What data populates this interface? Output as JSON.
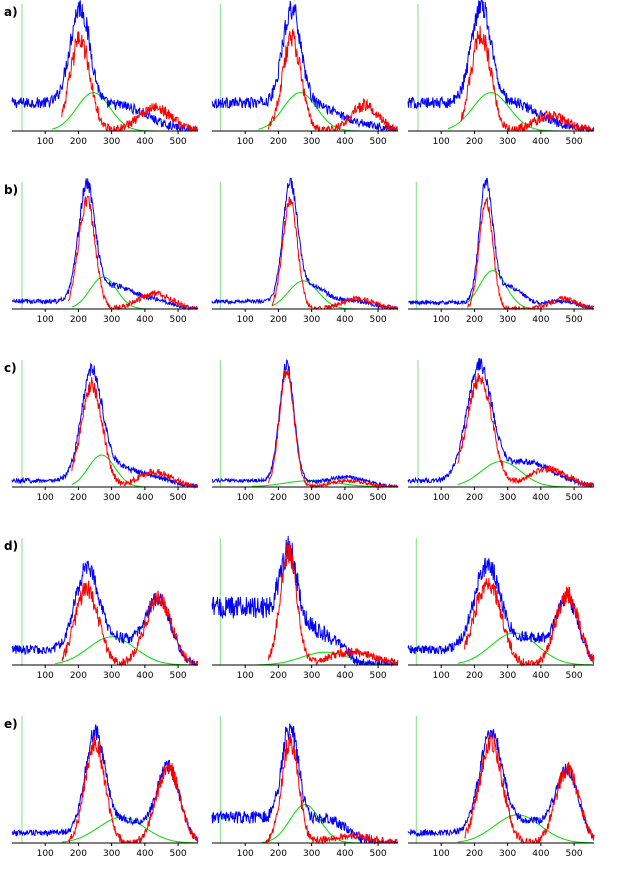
{
  "chart_data": {
    "type": "line",
    "row_labels": [
      "a)",
      "b)",
      "c)",
      "d)",
      "e)"
    ],
    "x_ticks": [
      100,
      200,
      300,
      400,
      500
    ],
    "xlim": [
      0,
      560
    ],
    "grid": false,
    "legend": "none",
    "colors": {
      "blue": "#0000ff",
      "red": "#ff0000",
      "green": "#00dd00",
      "marker": "#80e080"
    },
    "series_note": "Each panel: blue = noisy measured histogram, red = noisy fitted component, green = smooth reference curve; pale green vertical marker near x=20-40.",
    "panels": [
      {
        "row": 0,
        "col": 0,
        "marker_x": 30,
        "blue": {
          "baseline": 0.22,
          "peaks": [
            {
              "c": 205,
              "w": 30,
              "h": 0.78
            },
            {
              "c": 330,
              "w": 60,
              "h": 0.1
            },
            {
              "c": 430,
              "w": 60,
              "h": 0.05
            }
          ],
          "end": 560,
          "noise": 0.07
        },
        "red": {
          "peaks": [
            {
              "c": 205,
              "w": 30,
              "h": 0.72
            },
            {
              "c": 430,
              "w": 50,
              "h": 0.18
            }
          ],
          "start": 150,
          "end": 560,
          "noise": 0.08
        },
        "green": {
          "peaks": [
            {
              "c": 245,
              "w": 50,
              "h": 0.3
            }
          ],
          "start": 120,
          "end": 560
        }
      },
      {
        "row": 0,
        "col": 1,
        "marker_x": 25,
        "blue": {
          "baseline": 0.22,
          "peaks": [
            {
              "c": 240,
              "w": 28,
              "h": 0.78
            },
            {
              "c": 330,
              "w": 60,
              "h": 0.1
            },
            {
              "c": 460,
              "w": 50,
              "h": 0.05
            }
          ],
          "end": 560,
          "noise": 0.07
        },
        "red": {
          "peaks": [
            {
              "c": 240,
              "w": 28,
              "h": 0.72
            },
            {
              "c": 460,
              "w": 40,
              "h": 0.2
            }
          ],
          "start": 170,
          "end": 560,
          "noise": 0.08
        },
        "green": {
          "peaks": [
            {
              "c": 265,
              "w": 50,
              "h": 0.3
            }
          ],
          "start": 140,
          "end": 560
        }
      },
      {
        "row": 0,
        "col": 2,
        "marker_x": 30,
        "blue": {
          "baseline": 0.22,
          "peaks": [
            {
              "c": 220,
              "w": 30,
              "h": 0.8
            },
            {
              "c": 320,
              "w": 60,
              "h": 0.12
            },
            {
              "c": 440,
              "w": 60,
              "h": 0.05
            }
          ],
          "end": 560,
          "noise": 0.07
        },
        "red": {
          "peaks": [
            {
              "c": 220,
              "w": 30,
              "h": 0.75
            },
            {
              "c": 430,
              "w": 50,
              "h": 0.12
            }
          ],
          "start": 160,
          "end": 560,
          "noise": 0.08
        },
        "green": {
          "peaks": [
            {
              "c": 250,
              "w": 55,
              "h": 0.3
            }
          ],
          "start": 120,
          "end": 560
        }
      },
      {
        "row": 1,
        "col": 0,
        "marker_x": 30,
        "blue": {
          "baseline": 0.06,
          "peaks": [
            {
              "c": 225,
              "w": 25,
              "h": 0.9
            },
            {
              "c": 310,
              "w": 50,
              "h": 0.15
            },
            {
              "c": 430,
              "w": 50,
              "h": 0.07
            }
          ],
          "end": 560,
          "noise": 0.04
        },
        "red": {
          "peaks": [
            {
              "c": 225,
              "w": 25,
              "h": 0.85
            },
            {
              "c": 430,
              "w": 50,
              "h": 0.12
            }
          ],
          "start": 170,
          "end": 560,
          "noise": 0.05
        },
        "green": {
          "peaks": [
            {
              "c": 275,
              "w": 40,
              "h": 0.25
            }
          ],
          "start": 180,
          "end": 560
        }
      },
      {
        "row": 1,
        "col": 1,
        "marker_x": 25,
        "blue": {
          "baseline": 0.06,
          "peaks": [
            {
              "c": 235,
              "w": 22,
              "h": 0.9
            },
            {
              "c": 300,
              "w": 45,
              "h": 0.15
            },
            {
              "c": 430,
              "w": 50,
              "h": 0.06
            }
          ],
          "end": 560,
          "noise": 0.035
        },
        "red": {
          "peaks": [
            {
              "c": 235,
              "w": 22,
              "h": 0.85
            },
            {
              "c": 440,
              "w": 50,
              "h": 0.08
            }
          ],
          "start": 180,
          "end": 560,
          "noise": 0.04
        },
        "green": {
          "peaks": [
            {
              "c": 275,
              "w": 45,
              "h": 0.22
            }
          ],
          "start": 180,
          "end": 560
        }
      },
      {
        "row": 1,
        "col": 2,
        "marker_x": 25,
        "blue": {
          "baseline": 0.05,
          "peaks": [
            {
              "c": 235,
              "w": 20,
              "h": 0.92
            },
            {
              "c": 300,
              "w": 45,
              "h": 0.15
            },
            {
              "c": 460,
              "w": 50,
              "h": 0.06
            }
          ],
          "end": 560,
          "noise": 0.035
        },
        "red": {
          "peaks": [
            {
              "c": 235,
              "w": 20,
              "h": 0.85
            },
            {
              "c": 470,
              "w": 40,
              "h": 0.08
            }
          ],
          "start": 180,
          "end": 560,
          "noise": 0.04
        },
        "green": {
          "peaks": [
            {
              "c": 255,
              "w": 40,
              "h": 0.3
            }
          ],
          "start": 180,
          "end": 560
        }
      },
      {
        "row": 2,
        "col": 0,
        "marker_x": 30,
        "blue": {
          "baseline": 0.05,
          "peaks": [
            {
              "c": 240,
              "w": 32,
              "h": 0.85
            },
            {
              "c": 320,
              "w": 50,
              "h": 0.12
            },
            {
              "c": 430,
              "w": 55,
              "h": 0.07
            }
          ],
          "end": 560,
          "noise": 0.04
        },
        "red": {
          "peaks": [
            {
              "c": 240,
              "w": 32,
              "h": 0.8
            },
            {
              "c": 430,
              "w": 50,
              "h": 0.12
            }
          ],
          "start": 180,
          "end": 560,
          "noise": 0.05
        },
        "green": {
          "peaks": [
            {
              "c": 270,
              "w": 40,
              "h": 0.25
            }
          ],
          "start": 180,
          "end": 560
        }
      },
      {
        "row": 2,
        "col": 1,
        "marker_x": 25,
        "blue": {
          "baseline": 0.05,
          "peaks": [
            {
              "c": 225,
              "w": 22,
              "h": 0.92
            },
            {
              "c": 410,
              "w": 60,
              "h": 0.07
            }
          ],
          "end": 560,
          "noise": 0.03
        },
        "red": {
          "peaks": [
            {
              "c": 225,
              "w": 22,
              "h": 0.9
            },
            {
              "c": 410,
              "w": 50,
              "h": 0.05
            }
          ],
          "start": 170,
          "end": 560,
          "noise": 0.03
        },
        "green": {
          "peaks": [
            {
              "c": 300,
              "w": 80,
              "h": 0.05
            }
          ],
          "start": 120,
          "end": 560
        }
      },
      {
        "row": 2,
        "col": 2,
        "marker_x": 30,
        "blue": {
          "baseline": 0.05,
          "peaks": [
            {
              "c": 215,
              "w": 38,
              "h": 0.9
            },
            {
              "c": 340,
              "w": 60,
              "h": 0.15
            },
            {
              "c": 430,
              "w": 60,
              "h": 0.08
            }
          ],
          "end": 560,
          "noise": 0.04
        },
        "red": {
          "peaks": [
            {
              "c": 215,
              "w": 38,
              "h": 0.85
            },
            {
              "c": 420,
              "w": 60,
              "h": 0.14
            }
          ],
          "start": 150,
          "end": 560,
          "noise": 0.05
        },
        "green": {
          "peaks": [
            {
              "c": 280,
              "w": 60,
              "h": 0.2
            }
          ],
          "start": 150,
          "end": 560
        }
      },
      {
        "row": 3,
        "col": 0,
        "marker_x": 30,
        "blue": {
          "baseline": 0.12,
          "peaks": [
            {
              "c": 225,
              "w": 35,
              "h": 0.65
            },
            {
              "c": 320,
              "w": 50,
              "h": 0.15
            },
            {
              "c": 440,
              "w": 40,
              "h": 0.5
            }
          ],
          "end": 560,
          "noise": 0.07
        },
        "red": {
          "peaks": [
            {
              "c": 225,
              "w": 35,
              "h": 0.6
            },
            {
              "c": 440,
              "w": 40,
              "h": 0.52
            }
          ],
          "start": 150,
          "end": 560,
          "noise": 0.08
        },
        "green": {
          "peaks": [
            {
              "c": 300,
              "w": 70,
              "h": 0.22
            }
          ],
          "start": 130,
          "end": 560
        }
      },
      {
        "row": 3,
        "col": 1,
        "marker_x": 25,
        "blue": {
          "baseline": 0.45,
          "peaks": [
            {
              "c": 230,
              "w": 25,
              "h": 0.55
            },
            {
              "c": 330,
              "w": 60,
              "h": 0.08
            }
          ],
          "end": 560,
          "noise": 0.1
        },
        "red": {
          "peaks": [
            {
              "c": 230,
              "w": 25,
              "h": 0.88
            },
            {
              "c": 420,
              "w": 70,
              "h": 0.1
            }
          ],
          "start": 170,
          "end": 560,
          "noise": 0.07
        },
        "green": {
          "peaks": [
            {
              "c": 340,
              "w": 70,
              "h": 0.1
            }
          ],
          "start": 140,
          "end": 560
        }
      },
      {
        "row": 3,
        "col": 2,
        "marker_x": 25,
        "blue": {
          "baseline": 0.12,
          "peaks": [
            {
              "c": 240,
              "w": 40,
              "h": 0.7
            },
            {
              "c": 370,
              "w": 50,
              "h": 0.18
            },
            {
              "c": 480,
              "w": 35,
              "h": 0.5
            }
          ],
          "end": 560,
          "noise": 0.07
        },
        "red": {
          "peaks": [
            {
              "c": 240,
              "w": 40,
              "h": 0.65
            },
            {
              "c": 480,
              "w": 35,
              "h": 0.55
            }
          ],
          "start": 170,
          "end": 560,
          "noise": 0.08
        },
        "green": {
          "peaks": [
            {
              "c": 320,
              "w": 70,
              "h": 0.25
            }
          ],
          "start": 150,
          "end": 560
        }
      },
      {
        "row": 4,
        "col": 0,
        "marker_x": 30,
        "blue": {
          "baseline": 0.08,
          "peaks": [
            {
              "c": 250,
              "w": 30,
              "h": 0.8
            },
            {
              "c": 350,
              "w": 50,
              "h": 0.15
            },
            {
              "c": 470,
              "w": 35,
              "h": 0.6
            }
          ],
          "end": 560,
          "noise": 0.05
        },
        "red": {
          "peaks": [
            {
              "c": 250,
              "w": 30,
              "h": 0.78
            },
            {
              "c": 470,
              "w": 35,
              "h": 0.6
            }
          ],
          "start": 170,
          "end": 560,
          "noise": 0.07
        },
        "green": {
          "peaks": [
            {
              "c": 330,
              "w": 70,
              "h": 0.2
            }
          ],
          "start": 150,
          "end": 560
        }
      },
      {
        "row": 4,
        "col": 1,
        "marker_x": 25,
        "blue": {
          "baseline": 0.2,
          "peaks": [
            {
              "c": 235,
              "w": 25,
              "h": 0.75
            },
            {
              "c": 350,
              "w": 60,
              "h": 0.12
            }
          ],
          "end": 560,
          "noise": 0.08
        },
        "red": {
          "peaks": [
            {
              "c": 235,
              "w": 25,
              "h": 0.8
            },
            {
              "c": 420,
              "w": 60,
              "h": 0.06
            }
          ],
          "start": 160,
          "end": 560,
          "noise": 0.07
        },
        "green": {
          "peaks": [
            {
              "c": 280,
              "w": 45,
              "h": 0.3
            }
          ],
          "start": 150,
          "end": 560
        }
      },
      {
        "row": 4,
        "col": 2,
        "marker_x": 25,
        "blue": {
          "baseline": 0.08,
          "peaks": [
            {
              "c": 250,
              "w": 35,
              "h": 0.8
            },
            {
              "c": 370,
              "w": 60,
              "h": 0.15
            },
            {
              "c": 480,
              "w": 35,
              "h": 0.55
            }
          ],
          "end": 560,
          "noise": 0.05
        },
        "red": {
          "peaks": [
            {
              "c": 250,
              "w": 35,
              "h": 0.78
            },
            {
              "c": 480,
              "w": 35,
              "h": 0.58
            }
          ],
          "start": 170,
          "end": 560,
          "noise": 0.07
        },
        "green": {
          "peaks": [
            {
              "c": 330,
              "w": 70,
              "h": 0.22
            }
          ],
          "start": 150,
          "end": 560
        }
      }
    ]
  }
}
